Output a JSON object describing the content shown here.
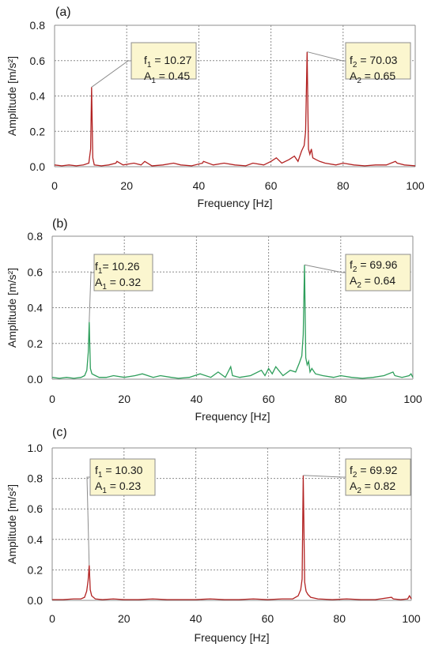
{
  "chart_data": [
    {
      "type": "line",
      "panel_label": "(a)",
      "xlabel": "Frequency [Hz]",
      "ylabel": "Amplitude [m/s²]",
      "xlim": [
        0,
        100
      ],
      "ylim": [
        0,
        0.8
      ],
      "xticks": [
        "0",
        "20",
        "40",
        "60",
        "80",
        "100"
      ],
      "yticks": [
        "0.0",
        "0.2",
        "0.4",
        "0.6",
        "0.8"
      ],
      "grid": true,
      "color": "#b22222",
      "series": [
        {
          "x": [
            0,
            2,
            4,
            6,
            8,
            9.5,
            10,
            10.27,
            10.6,
            11,
            13,
            15,
            17,
            17.3,
            19,
            22,
            24,
            25,
            27,
            30,
            33,
            35,
            38,
            41,
            41.3,
            44,
            47,
            50,
            53,
            55,
            58,
            60,
            61.5,
            63,
            65,
            66.5,
            67.5,
            68.5,
            69.2,
            69.6,
            70.03,
            70.4,
            70.8,
            71.2,
            71.6,
            72.5,
            73.5,
            75,
            78,
            80,
            83,
            86,
            89,
            92,
            94.5,
            95,
            97,
            100
          ],
          "y": [
            0.01,
            0.005,
            0.01,
            0.005,
            0.01,
            0.02,
            0.1,
            0.45,
            0.05,
            0.01,
            0.005,
            0.01,
            0.02,
            0.03,
            0.01,
            0.02,
            0.01,
            0.03,
            0.005,
            0.01,
            0.02,
            0.01,
            0.005,
            0.02,
            0.03,
            0.01,
            0.02,
            0.01,
            0.005,
            0.02,
            0.01,
            0.03,
            0.05,
            0.02,
            0.04,
            0.06,
            0.03,
            0.09,
            0.12,
            0.2,
            0.65,
            0.1,
            0.07,
            0.1,
            0.05,
            0.04,
            0.03,
            0.02,
            0.01,
            0.02,
            0.01,
            0.005,
            0.01,
            0.01,
            0.03,
            0.02,
            0.01,
            0.005
          ]
        }
      ],
      "annotations": [
        {
          "f_label": "f",
          "f_sub": "1",
          "f_value": " = 10.27",
          "a_label": "A",
          "a_sub": "1",
          "a_value": " = 0.45",
          "x": 10.27,
          "y": 0.45
        },
        {
          "f_label": "f",
          "f_sub": "2",
          "f_value": " = 70.03",
          "a_label": "A",
          "a_sub": "2",
          "a_value": " = 0.65",
          "x": 70.03,
          "y": 0.65
        }
      ]
    },
    {
      "type": "line",
      "panel_label": "(b)",
      "xlabel": "Frequency [Hz]",
      "ylabel": "Amplitude [m/s²]",
      "xlim": [
        0,
        100
      ],
      "ylim": [
        0,
        0.8
      ],
      "xticks": [
        "0",
        "20",
        "40",
        "60",
        "80",
        "100"
      ],
      "yticks": [
        "0.0",
        "0.2",
        "0.4",
        "0.6",
        "0.8"
      ],
      "grid": true,
      "color": "#2e9e5b",
      "series": [
        {
          "x": [
            0,
            2,
            4,
            6,
            8,
            9,
            9.6,
            10.0,
            10.26,
            10.6,
            11,
            12,
            13,
            15,
            17,
            20,
            23,
            25,
            28,
            30,
            33,
            35,
            38,
            41,
            44,
            46,
            48,
            49.5,
            50,
            52,
            55,
            58,
            59,
            60,
            61,
            62,
            64,
            66,
            67.5,
            68.5,
            69.2,
            69.6,
            69.96,
            70.3,
            70.7,
            71.1,
            71.5,
            72,
            73,
            75,
            78,
            80,
            83,
            86,
            89,
            92,
            94.5,
            95,
            97,
            99,
            99.5,
            100
          ],
          "y": [
            0.01,
            0.005,
            0.01,
            0.005,
            0.01,
            0.02,
            0.05,
            0.15,
            0.32,
            0.06,
            0.03,
            0.02,
            0.01,
            0.01,
            0.02,
            0.01,
            0.02,
            0.03,
            0.01,
            0.02,
            0.01,
            0.005,
            0.01,
            0.03,
            0.01,
            0.04,
            0.01,
            0.07,
            0.02,
            0.01,
            0.02,
            0.05,
            0.02,
            0.06,
            0.03,
            0.07,
            0.02,
            0.05,
            0.04,
            0.09,
            0.13,
            0.25,
            0.64,
            0.12,
            0.08,
            0.1,
            0.04,
            0.06,
            0.03,
            0.02,
            0.01,
            0.02,
            0.01,
            0.005,
            0.01,
            0.02,
            0.04,
            0.02,
            0.01,
            0.02,
            0.03,
            0.01
          ]
        }
      ],
      "annotations": [
        {
          "f_label": "f",
          "f_sub": "1",
          "f_value": "= 10.26",
          "a_label": "A",
          "a_sub": "1",
          "a_value": " = 0.32",
          "x": 10.26,
          "y": 0.32
        },
        {
          "f_label": "f",
          "f_sub": "2",
          "f_value": " = 69.96",
          "a_label": "A",
          "a_sub": "2",
          "a_value": " = 0.64",
          "x": 69.96,
          "y": 0.64
        }
      ]
    },
    {
      "type": "line",
      "panel_label": "(c)",
      "xlabel": "Frequency [Hz]",
      "ylabel": "Amplitude [m/s²]",
      "xlim": [
        0,
        100
      ],
      "ylim": [
        0,
        1.0
      ],
      "xticks": [
        "0",
        "20",
        "40",
        "60",
        "80",
        "100"
      ],
      "yticks": [
        "0.0",
        "0.2",
        "0.4",
        "0.6",
        "0.8",
        "1.0"
      ],
      "grid": true,
      "color": "#b22222",
      "series": [
        {
          "x": [
            0,
            3,
            6,
            8,
            9,
            9.6,
            10.0,
            10.3,
            10.6,
            11,
            12,
            14,
            17,
            20,
            24,
            28,
            32,
            36,
            40,
            44,
            48,
            52,
            56,
            60,
            64,
            67,
            68.5,
            69.2,
            69.6,
            69.92,
            70.3,
            70.7,
            71.2,
            72,
            74,
            78,
            82,
            86,
            90,
            94.5,
            95,
            97,
            99,
            99.5,
            100
          ],
          "y": [
            0.005,
            0.005,
            0.01,
            0.01,
            0.02,
            0.06,
            0.13,
            0.23,
            0.07,
            0.03,
            0.01,
            0.005,
            0.01,
            0.005,
            0.005,
            0.01,
            0.005,
            0.005,
            0.005,
            0.01,
            0.005,
            0.005,
            0.01,
            0.005,
            0.01,
            0.01,
            0.03,
            0.07,
            0.14,
            0.82,
            0.12,
            0.06,
            0.04,
            0.02,
            0.01,
            0.005,
            0.01,
            0.005,
            0.005,
            0.02,
            0.01,
            0.005,
            0.01,
            0.03,
            0.01
          ]
        }
      ],
      "annotations": [
        {
          "f_label": "f",
          "f_sub": "1",
          "f_value": " = 10.30",
          "a_label": "A",
          "a_sub": "1",
          "a_value": " = 0.23",
          "x": 10.3,
          "y": 0.23
        },
        {
          "f_label": "f",
          "f_sub": "2",
          "f_value": " = 69.92",
          "a_label": "A",
          "a_sub": "2",
          "a_value": " = 0.82",
          "x": 69.92,
          "y": 0.82
        }
      ]
    }
  ]
}
